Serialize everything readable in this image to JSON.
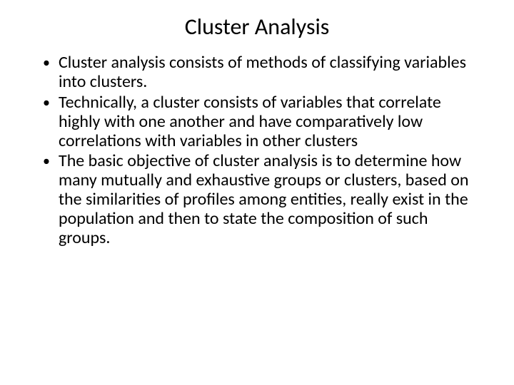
{
  "slide": {
    "title": "Cluster Analysis",
    "bullets": [
      "Cluster analysis consists of methods of classifying variables into clusters.",
      "Technically, a cluster consists of variables that correlate highly with one another and have comparatively low correlations with variables in other clusters",
      "The basic objective of cluster analysis is to determine how many mutually and exhaustive groups or clusters, based on the similarities of profiles among entities, really exist in the population and then to state the composition of such groups."
    ]
  },
  "style": {
    "background_color": "#ffffff",
    "text_color": "#000000",
    "font_family": "Calibri",
    "title_fontsize": 32,
    "body_fontsize": 24,
    "title_weight": 400,
    "body_weight": 400,
    "slide_width": 720,
    "slide_height": 540
  }
}
